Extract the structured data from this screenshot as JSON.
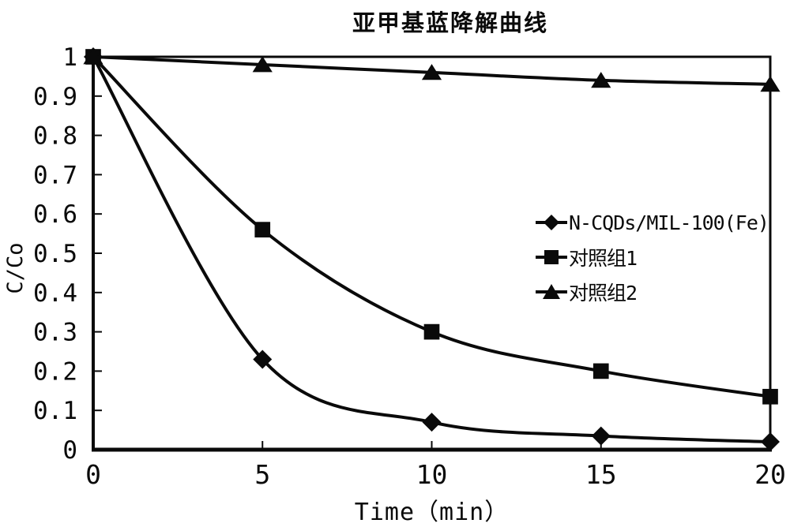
{
  "chart_data": {
    "type": "line",
    "title": "亚甲基蓝降解曲线",
    "xlabel": "Time（min）",
    "ylabel": "C/Co",
    "x": [
      0,
      5,
      10,
      15,
      20
    ],
    "series": [
      {
        "name": "N-CQDs/MIL-100(Fe)",
        "marker": "diamond",
        "values": [
          1,
          0.23,
          0.07,
          0.035,
          0.02
        ]
      },
      {
        "name": "对照组1",
        "marker": "square",
        "values": [
          1,
          0.56,
          0.3,
          0.2,
          0.135
        ]
      },
      {
        "name": "对照组2",
        "marker": "triangle",
        "values": [
          1,
          0.98,
          0.96,
          0.94,
          0.93
        ]
      }
    ],
    "xlim": [
      0,
      20
    ],
    "ylim": [
      0,
      1
    ],
    "x_ticks": [
      0,
      5,
      10,
      15,
      20
    ],
    "y_ticks": [
      0,
      0.1,
      0.2,
      0.3,
      0.4,
      0.5,
      0.6,
      0.7,
      0.8,
      0.9,
      1
    ],
    "grid": false,
    "legend_position": "inside-right",
    "line_color": "#0a0a0a",
    "background_color": "#ffffff"
  }
}
